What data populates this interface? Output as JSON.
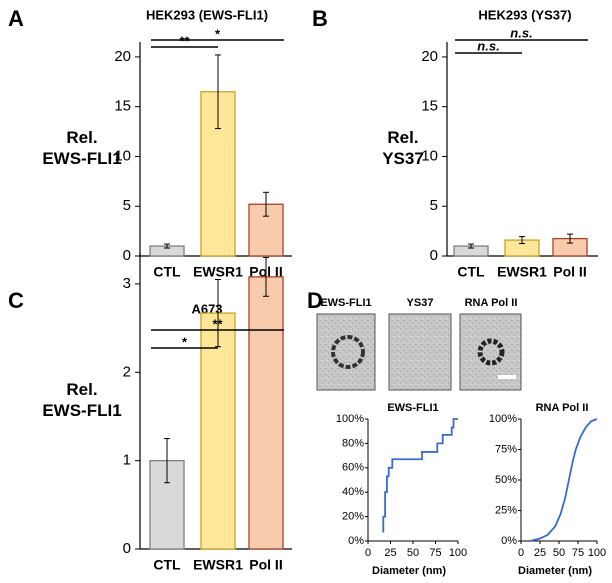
{
  "chart_data": [
    {
      "type": "bar",
      "panel_label": "A",
      "title": "HEK293 (EWS-FLI1)",
      "ylabel": [
        "Rel.",
        "EWS-FLI1"
      ],
      "categories": [
        "CTL",
        "EWSR1",
        "Pol II"
      ],
      "values": [
        1.0,
        16.5,
        5.2
      ],
      "errors": [
        0.2,
        3.7,
        1.2
      ],
      "colors": [
        "#d9d9d9",
        "#ffe699",
        "#f8cbad"
      ],
      "edgecolors": [
        "#7f7f7f",
        "#c9a227",
        "#a0442a"
      ],
      "ylim": [
        0,
        21.5
      ],
      "yticks": [
        0,
        5,
        10,
        15,
        20
      ],
      "comparisons": [
        {
          "from": 0,
          "to": 1,
          "label": "**"
        },
        {
          "from": 0,
          "to": 2,
          "label": "*"
        }
      ]
    },
    {
      "type": "bar",
      "panel_label": "B",
      "title": "HEK293 (YS37)",
      "ylabel": [
        "Rel.",
        "YS37"
      ],
      "categories": [
        "CTL",
        "EWSR1",
        "Pol II"
      ],
      "values": [
        1.0,
        1.6,
        1.75
      ],
      "errors": [
        0.2,
        0.35,
        0.45
      ],
      "colors": [
        "#d9d9d9",
        "#ffe699",
        "#f8cbad"
      ],
      "edgecolors": [
        "#7f7f7f",
        "#c9a227",
        "#a0442a"
      ],
      "ylim": [
        0,
        21.5
      ],
      "yticks": [
        0,
        5,
        10,
        15,
        20
      ],
      "comparisons": [
        {
          "from": 0,
          "to": 1,
          "label": "n.s."
        },
        {
          "from": 0,
          "to": 2,
          "label": "n.s."
        }
      ]
    },
    {
      "type": "bar",
      "panel_label": "C",
      "title": "A673",
      "ylabel": [
        "Rel.",
        "EWS-FLI1"
      ],
      "categories": [
        "CTL",
        "EWSR1",
        "Pol II"
      ],
      "values": [
        1.0,
        2.67,
        3.08
      ],
      "errors": [
        0.25,
        0.38,
        0.22
      ],
      "colors": [
        "#d9d9d9",
        "#ffe699",
        "#f8cbad"
      ],
      "edgecolors": [
        "#7f7f7f",
        "#c9a227",
        "#a0442a"
      ],
      "ylim": [
        0,
        3.35
      ],
      "yticks": [
        0,
        1,
        2,
        3
      ],
      "comparisons": [
        {
          "from": 0,
          "to": 1,
          "label": "*"
        },
        {
          "from": 0,
          "to": 2,
          "label": "**"
        }
      ]
    },
    {
      "type": "line",
      "title": "EWS-FLI1",
      "xlabel": "Diameter (nm)",
      "x": [
        17,
        17,
        19,
        19,
        21,
        21,
        23,
        23,
        27,
        27,
        60,
        60,
        77,
        77,
        83,
        83,
        93,
        93,
        95,
        95,
        100
      ],
      "series": [
        {
          "color": "#3a6bc9",
          "values": [
            7,
            20,
            20,
            40,
            40,
            53,
            53,
            60,
            60,
            67,
            67,
            73,
            73,
            80,
            80,
            87,
            87,
            93,
            93,
            100,
            100
          ]
        }
      ],
      "xlim": [
        0,
        100
      ],
      "xticks": [
        0,
        25,
        50,
        75,
        100
      ],
      "ylim": [
        0,
        100
      ],
      "yticks": [
        {
          "value": 0,
          "label": "0%"
        },
        {
          "value": 20,
          "label": "20%"
        },
        {
          "value": 40,
          "label": "40%"
        },
        {
          "value": 60,
          "label": "60%"
        },
        {
          "value": 80,
          "label": "80%"
        },
        {
          "value": 100,
          "label": "100%"
        }
      ]
    },
    {
      "type": "line",
      "title": "RNA Pol II",
      "xlabel": "Diameter (nm)",
      "x": [
        12,
        25,
        35,
        45,
        52,
        58,
        63,
        68,
        72,
        78,
        85,
        92,
        100
      ],
      "series": [
        {
          "color": "#3a6bc9",
          "values": [
            0,
            2,
            5,
            12,
            22,
            35,
            50,
            65,
            75,
            85,
            93,
            98,
            100
          ]
        }
      ],
      "xlim": [
        0,
        100
      ],
      "xticks": [
        0,
        25,
        50,
        75,
        100
      ],
      "ylim": [
        0,
        100
      ],
      "yticks": [
        {
          "value": 0,
          "label": "0%"
        },
        {
          "value": 25,
          "label": "25%"
        },
        {
          "value": 50,
          "label": "50%"
        },
        {
          "value": 75,
          "label": "75%"
        },
        {
          "value": 100,
          "label": "100%"
        }
      ]
    }
  ],
  "micrographs": {
    "panel_label": "D",
    "labels": [
      "EWS-FLI1",
      "YS37",
      "RNA Pol II"
    ]
  }
}
